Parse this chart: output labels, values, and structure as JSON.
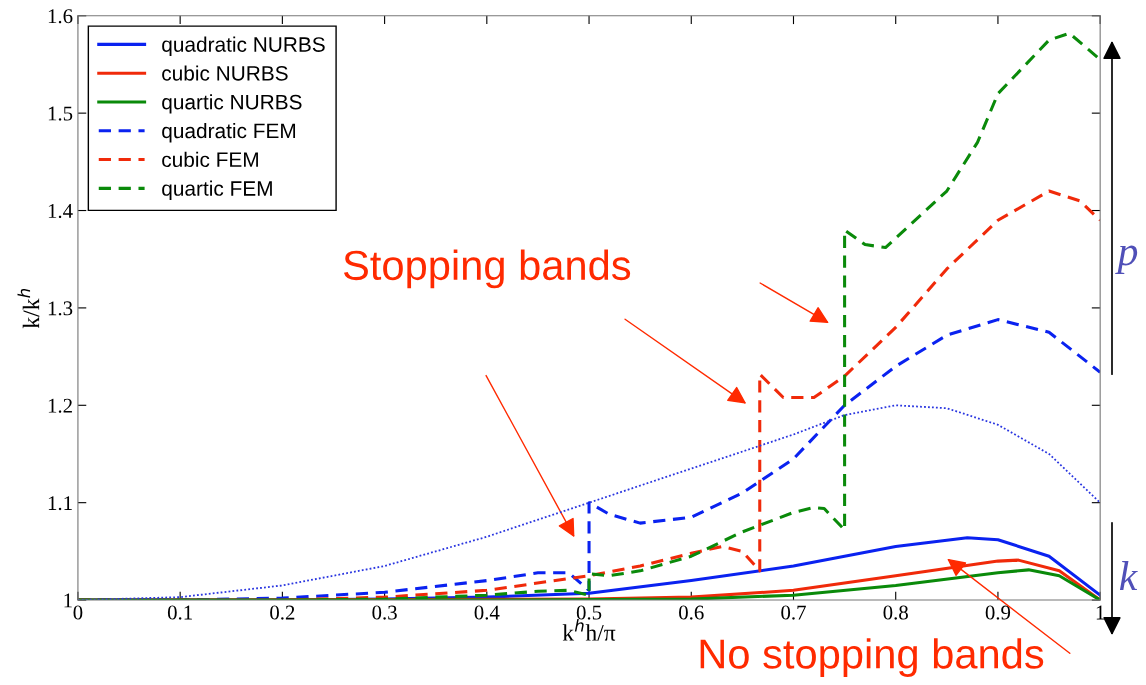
{
  "chart_data": {
    "type": "line",
    "xlabel": "k$^{h}$h/π",
    "ylabel": "k/k$^{h}$",
    "xlim": [
      0,
      1
    ],
    "ylim": [
      1,
      1.6
    ],
    "xticks": [
      0,
      0.1,
      0.2,
      0.3,
      0.4,
      0.5,
      0.6,
      0.7,
      0.8,
      0.9,
      1
    ],
    "yticks": [
      1,
      1.1,
      1.2,
      1.3,
      1.4,
      1.5,
      1.6
    ],
    "grid": false,
    "legend": "top left",
    "marker": "none",
    "series": [
      {
        "name": "quadratic NURBS",
        "color": "#0a22f0",
        "line_style": "solid",
        "x": [
          0,
          0.1,
          0.2,
          0.3,
          0.4,
          0.5,
          0.6,
          0.7,
          0.8,
          0.87,
          0.9,
          0.95,
          1.0
        ],
        "values": [
          1,
          1,
          1,
          1.001,
          1.003,
          1.007,
          1.02,
          1.035,
          1.055,
          1.064,
          1.062,
          1.045,
          1.005
        ]
      },
      {
        "name": "cubic NURBS",
        "color": "#f02a0a",
        "line_style": "solid",
        "x": [
          0,
          0.5,
          0.6,
          0.7,
          0.8,
          0.9,
          0.92,
          0.96,
          1.0
        ],
        "values": [
          1,
          1.001,
          1.003,
          1.01,
          1.025,
          1.04,
          1.041,
          1.03,
          1.0
        ]
      },
      {
        "name": "quartic NURBS",
        "color": "#0a8a0a",
        "line_style": "solid",
        "x": [
          0,
          0.2,
          0.4,
          0.6,
          0.7,
          0.8,
          0.9,
          0.93,
          0.96,
          1.0
        ],
        "values": [
          1,
          1,
          1,
          1.001,
          1.005,
          1.015,
          1.028,
          1.031,
          1.025,
          1.0
        ]
      },
      {
        "name": "quadratic FEM",
        "color": "#0a22f0",
        "line_style": "dashed",
        "x": [
          0,
          0.1,
          0.2,
          0.3,
          0.4,
          0.45,
          0.48,
          0.5,
          0.5,
          0.52,
          0.55,
          0.6,
          0.65,
          0.7,
          0.75,
          0.8,
          0.85,
          0.9,
          0.95,
          1.0
        ],
        "values": [
          1,
          1,
          1.002,
          1.008,
          1.02,
          1.028,
          1.028,
          1.01,
          1.1,
          1.088,
          1.079,
          1.085,
          1.11,
          1.145,
          1.2,
          1.24,
          1.272,
          1.288,
          1.275,
          1.234
        ]
      },
      {
        "name": "cubic FEM",
        "color": "#f02a0a",
        "line_style": "dashed",
        "x": [
          0,
          0.2,
          0.3,
          0.4,
          0.5,
          0.55,
          0.6,
          0.63,
          0.65,
          0.667,
          0.667,
          0.69,
          0.72,
          0.75,
          0.8,
          0.85,
          0.9,
          0.95,
          0.98,
          1.0
        ],
        "values": [
          1,
          1,
          1.003,
          1.01,
          1.025,
          1.035,
          1.048,
          1.055,
          1.05,
          1.03,
          1.232,
          1.208,
          1.208,
          1.23,
          1.28,
          1.34,
          1.39,
          1.42,
          1.41,
          1.39
        ]
      },
      {
        "name": "quartic FEM",
        "color": "#0a8a0a",
        "line_style": "dashed",
        "x": [
          0,
          0.2,
          0.3,
          0.4,
          0.45,
          0.48,
          0.5,
          0.5,
          0.52,
          0.55,
          0.6,
          0.65,
          0.7,
          0.72,
          0.73,
          0.75,
          0.75,
          0.77,
          0.79,
          0.85,
          0.88,
          0.9,
          0.95,
          0.97,
          1.0
        ],
        "values": [
          1,
          1,
          1.001,
          1.005,
          1.009,
          1.01,
          1.005,
          1.027,
          1.025,
          1.03,
          1.045,
          1.07,
          1.09,
          1.095,
          1.094,
          1.072,
          1.38,
          1.365,
          1.362,
          1.42,
          1.47,
          1.52,
          1.575,
          1.582,
          1.555
        ]
      },
      {
        "color": "#2a36e0",
        "line_style": "dotted",
        "x": [
          0,
          0.1,
          0.2,
          0.3,
          0.4,
          0.5,
          0.6,
          0.7,
          0.75,
          0.8,
          0.85,
          0.9,
          0.95,
          1.0
        ],
        "values": [
          1,
          1.003,
          1.015,
          1.035,
          1.065,
          1.1,
          1.135,
          1.17,
          1.19,
          1.2,
          1.197,
          1.18,
          1.15,
          1.1
        ]
      }
    ],
    "annotations": [
      "Stopping bands",
      "No stopping bands",
      "p",
      "k"
    ]
  }
}
